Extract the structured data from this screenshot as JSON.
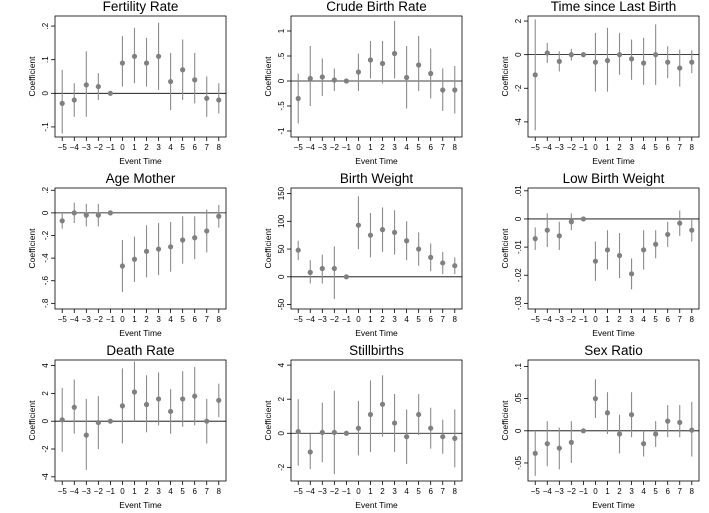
{
  "chart_data": [
    {
      "type": "scatter",
      "title": "Fertility Rate",
      "xlabel": "Event Time",
      "ylabel": "Coefficient",
      "x": [
        -5,
        -4,
        -3,
        -2,
        -1,
        0,
        1,
        2,
        3,
        4,
        5,
        6,
        7,
        8
      ],
      "y": [
        -0.03,
        -0.02,
        0.025,
        0.02,
        0.0,
        0.09,
        0.11,
        0.09,
        0.11,
        0.035,
        0.07,
        0.04,
        -0.015,
        -0.02
      ],
      "ci_low": [
        -0.12,
        -0.07,
        -0.07,
        -0.02,
        0.0,
        0.02,
        0.03,
        0.02,
        0.01,
        -0.05,
        -0.02,
        -0.03,
        -0.07,
        -0.06
      ],
      "ci_high": [
        0.07,
        0.03,
        0.125,
        0.06,
        0.0,
        0.17,
        0.195,
        0.165,
        0.21,
        0.12,
        0.16,
        0.12,
        0.05,
        0.03
      ],
      "ylim": [
        -0.13,
        0.23
      ],
      "yticks": [
        -0.1,
        0,
        0.1,
        0.2
      ],
      "ytick_labels": [
        "-.1",
        "0",
        ".1",
        ".2"
      ],
      "xtick_labels": [
        "−5",
        "−4",
        "−3",
        "−2",
        "−1",
        "0",
        "1",
        "2",
        "3",
        "4",
        "5",
        "6",
        "7",
        "8"
      ]
    },
    {
      "type": "scatter",
      "title": "Crude Birth Rate",
      "xlabel": "Event Time",
      "ylabel": "Coefficient",
      "x": [
        -5,
        -4,
        -3,
        -2,
        -1,
        0,
        1,
        2,
        3,
        4,
        5,
        6,
        7,
        8
      ],
      "y": [
        -0.35,
        0.05,
        0.08,
        0.02,
        0.0,
        0.18,
        0.42,
        0.35,
        0.55,
        0.07,
        0.32,
        0.15,
        -0.18,
        -0.18
      ],
      "ci_low": [
        -0.85,
        -0.5,
        -0.3,
        -0.2,
        0.0,
        -0.2,
        0.05,
        -0.05,
        0.05,
        -0.55,
        -0.2,
        -0.35,
        -0.6,
        -0.65
      ],
      "ci_high": [
        0.15,
        0.7,
        0.45,
        0.25,
        0.0,
        0.55,
        0.8,
        0.8,
        1.2,
        0.7,
        0.9,
        0.65,
        0.25,
        0.3
      ],
      "ylim": [
        -1.12,
        1.3
      ],
      "yticks": [
        -1,
        -0.5,
        0,
        0.5,
        1
      ],
      "ytick_labels": [
        "-1",
        "-.5",
        "0",
        ".5",
        "1"
      ],
      "xtick_labels": [
        "−5",
        "−4",
        "−3",
        "−2",
        "−1",
        "0",
        "1",
        "2",
        "3",
        "4",
        "5",
        "6",
        "7",
        "8"
      ]
    },
    {
      "type": "scatter",
      "title": "Time since Last Birth",
      "xlabel": "Event Time",
      "ylabel": "Coefficient",
      "x": [
        -5,
        -4,
        -3,
        -2,
        -1,
        0,
        1,
        2,
        3,
        4,
        5,
        6,
        7,
        8
      ],
      "y": [
        -1.2,
        0.1,
        -0.4,
        0.0,
        0.0,
        -0.45,
        -0.35,
        0.0,
        -0.25,
        -0.5,
        0.0,
        -0.45,
        -0.8,
        -0.45
      ],
      "ci_low": [
        -4.5,
        -0.5,
        -1.0,
        -0.35,
        0.0,
        -2.2,
        -2.2,
        -1.2,
        -1.5,
        -1.8,
        -1.8,
        -1.4,
        -1.9,
        -1.1
      ],
      "ci_high": [
        2.1,
        0.7,
        0.2,
        0.35,
        0.0,
        1.3,
        1.6,
        1.3,
        0.9,
        1.0,
        1.8,
        0.5,
        0.3,
        0.25
      ],
      "ylim": [
        -4.9,
        2.3
      ],
      "yticks": [
        -4,
        -2,
        0,
        2
      ],
      "ytick_labels": [
        "-4",
        "-2",
        "0",
        "2"
      ],
      "xtick_labels": [
        "−5",
        "−4",
        "−3",
        "−2",
        "−1",
        "0",
        "1",
        "2",
        "3",
        "4",
        "5",
        "6",
        "7",
        "8"
      ]
    },
    {
      "type": "scatter",
      "title": "Age Mother",
      "xlabel": "Event Time",
      "ylabel": "Coefficient",
      "x": [
        -5,
        -4,
        -3,
        -2,
        -1,
        0,
        1,
        2,
        3,
        4,
        5,
        6,
        7,
        8
      ],
      "y": [
        -0.07,
        0.0,
        -0.02,
        -0.02,
        0.0,
        -0.47,
        -0.41,
        -0.34,
        -0.32,
        -0.3,
        -0.24,
        -0.22,
        -0.16,
        -0.03
      ],
      "ci_low": [
        -0.14,
        -0.09,
        -0.12,
        -0.12,
        0.0,
        -0.7,
        -0.61,
        -0.57,
        -0.55,
        -0.52,
        -0.45,
        -0.41,
        -0.35,
        -0.13
      ],
      "ci_high": [
        0.0,
        0.09,
        0.08,
        0.08,
        0.0,
        -0.24,
        -0.21,
        -0.11,
        -0.09,
        -0.08,
        -0.03,
        -0.03,
        0.03,
        0.07
      ],
      "ylim": [
        -0.85,
        0.22
      ],
      "yticks": [
        -0.8,
        -0.6,
        -0.4,
        -0.2,
        0,
        0.2
      ],
      "ytick_labels": [
        "-.8",
        "-.6",
        "-.4",
        "-.2",
        "0",
        ".2"
      ],
      "xtick_labels": [
        "−5",
        "−4",
        "−3",
        "−2",
        "−1",
        "0",
        "1",
        "2",
        "3",
        "4",
        "5",
        "6",
        "7",
        "8"
      ]
    },
    {
      "type": "scatter",
      "title": "Birth Weight",
      "xlabel": "Event Time",
      "ylabel": "Coefficient",
      "x": [
        -5,
        -4,
        -3,
        -2,
        -1,
        0,
        1,
        2,
        3,
        4,
        5,
        6,
        7,
        8
      ],
      "y": [
        48,
        8,
        15,
        15,
        0,
        93,
        75,
        85,
        80,
        65,
        50,
        35,
        25,
        20
      ],
      "ci_low": [
        30,
        -12,
        -12,
        -40,
        0,
        50,
        35,
        45,
        40,
        30,
        20,
        10,
        5,
        5
      ],
      "ci_high": [
        65,
        30,
        40,
        55,
        0,
        145,
        115,
        125,
        120,
        100,
        80,
        60,
        45,
        35
      ],
      "ylim": [
        -58,
        160
      ],
      "yticks": [
        -50,
        0,
        50,
        100,
        150
      ],
      "ytick_labels": [
        "-50",
        "0",
        "50",
        "100",
        "150"
      ],
      "xtick_labels": [
        "−5",
        "−4",
        "−3",
        "−2",
        "−1",
        "0",
        "1",
        "2",
        "3",
        "4",
        "5",
        "6",
        "7",
        "8"
      ]
    },
    {
      "type": "scatter",
      "title": "Low Birth Weight",
      "xlabel": "Event Time",
      "ylabel": "Coefficient",
      "x": [
        -5,
        -4,
        -3,
        -2,
        -1,
        0,
        1,
        2,
        3,
        4,
        5,
        6,
        7,
        8
      ],
      "y": [
        -0.007,
        -0.004,
        -0.006,
        -0.001,
        0.0,
        -0.015,
        -0.011,
        -0.013,
        -0.0195,
        -0.011,
        -0.009,
        -0.0055,
        -0.0015,
        -0.004
      ],
      "ci_low": [
        -0.011,
        -0.01,
        -0.011,
        -0.004,
        0.0,
        -0.022,
        -0.018,
        -0.021,
        -0.025,
        -0.018,
        -0.014,
        -0.01,
        -0.006,
        -0.008
      ],
      "ci_high": [
        -0.003,
        0.002,
        -0.001,
        0.002,
        0.0,
        -0.008,
        -0.004,
        -0.005,
        -0.014,
        -0.004,
        -0.004,
        -0.001,
        0.003,
        0.0
      ],
      "ylim": [
        -0.032,
        0.011
      ],
      "yticks": [
        -0.03,
        -0.02,
        -0.01,
        0,
        0.01
      ],
      "ytick_labels": [
        "-.03",
        "-.02",
        "-.01",
        "0",
        ".01"
      ],
      "xtick_labels": [
        "−5",
        "−4",
        "−3",
        "−2",
        "−1",
        "0",
        "1",
        "2",
        "3",
        "4",
        "5",
        "6",
        "7",
        "8"
      ]
    },
    {
      "type": "scatter",
      "title": "Death Rate",
      "xlabel": "Event Time",
      "ylabel": "Coefficient",
      "x": [
        -5,
        -4,
        -3,
        -2,
        -1,
        0,
        1,
        2,
        3,
        4,
        5,
        6,
        7,
        8
      ],
      "y": [
        0.1,
        1.0,
        -1.0,
        -0.1,
        0.0,
        1.1,
        2.1,
        1.2,
        1.6,
        0.7,
        1.6,
        1.8,
        0.0,
        1.5
      ],
      "ci_low": [
        -2.2,
        -0.9,
        -3.5,
        -2.0,
        0.0,
        -1.6,
        0.0,
        -0.8,
        -0.3,
        -0.9,
        -0.4,
        -0.3,
        -1.6,
        0.3
      ],
      "ci_high": [
        2.4,
        3.0,
        1.6,
        1.8,
        0.0,
        3.8,
        4.3,
        3.3,
        3.5,
        2.3,
        3.6,
        3.9,
        1.6,
        2.7
      ],
      "ylim": [
        -4.3,
        4.4
      ],
      "yticks": [
        -4,
        -2,
        0,
        2,
        4
      ],
      "ytick_labels": [
        "-4",
        "-2",
        "0",
        "2",
        "4"
      ],
      "xtick_labels": [
        "−5",
        "−4",
        "−3",
        "−2",
        "−1",
        "0",
        "1",
        "2",
        "3",
        "4",
        "5",
        "6",
        "7",
        "8"
      ]
    },
    {
      "type": "scatter",
      "title": "Stillbirths",
      "xlabel": "Event Time",
      "ylabel": "Coefficient",
      "x": [
        -5,
        -4,
        -3,
        -2,
        -1,
        0,
        1,
        2,
        3,
        4,
        5,
        6,
        7,
        8
      ],
      "y": [
        0.1,
        -1.1,
        0.05,
        0.05,
        0.0,
        0.3,
        1.1,
        1.7,
        0.6,
        -0.2,
        1.1,
        0.3,
        -0.2,
        -0.3
      ],
      "ci_low": [
        -1.9,
        -2.1,
        -1.7,
        -2.4,
        0.0,
        -1.3,
        -1.1,
        -0.2,
        -1.1,
        -1.8,
        -0.1,
        -0.9,
        -1.2,
        -2.0
      ],
      "ci_high": [
        2.0,
        0.0,
        1.8,
        2.5,
        0.0,
        1.9,
        3.1,
        3.4,
        2.3,
        1.4,
        2.3,
        1.5,
        0.8,
        1.4
      ],
      "ylim": [
        -2.8,
        4.3
      ],
      "yticks": [
        -2,
        0,
        2,
        4
      ],
      "ytick_labels": [
        "-2",
        "0",
        "2",
        "4"
      ],
      "xtick_labels": [
        "−5",
        "−4",
        "−3",
        "−2",
        "−1",
        "0",
        "1",
        "2",
        "3",
        "4",
        "5",
        "6",
        "7",
        "8"
      ]
    },
    {
      "type": "scatter",
      "title": "Sex Ratio",
      "xlabel": "Event Time",
      "ylabel": "Coefficient",
      "x": [
        -5,
        -4,
        -3,
        -2,
        -1,
        0,
        1,
        2,
        3,
        4,
        5,
        6,
        7,
        8
      ],
      "y": [
        -0.035,
        -0.02,
        -0.027,
        -0.018,
        0.0,
        0.05,
        0.028,
        -0.005,
        0.025,
        -0.02,
        -0.005,
        0.015,
        0.013,
        0.001
      ],
      "ci_low": [
        -0.07,
        -0.055,
        -0.06,
        -0.05,
        0.0,
        0.02,
        -0.005,
        -0.035,
        -0.01,
        -0.04,
        -0.025,
        -0.01,
        -0.01,
        -0.04
      ],
      "ci_high": [
        0.0,
        0.015,
        0.005,
        0.015,
        0.0,
        0.08,
        0.06,
        0.025,
        0.06,
        0.0,
        0.015,
        0.04,
        0.04,
        0.045
      ],
      "ylim": [
        -0.078,
        0.11
      ],
      "yticks": [
        -0.05,
        0,
        0.05,
        0.1
      ],
      "ytick_labels": [
        "-.05",
        "0",
        ".05",
        ".1"
      ],
      "xtick_labels": [
        "−5",
        "−4",
        "−3",
        "−2",
        "−1",
        "0",
        "1",
        "2",
        "3",
        "4",
        "5",
        "6",
        "7",
        "8"
      ]
    }
  ],
  "colors": {
    "marker": "#808080",
    "ci": "#8c8c8c",
    "axis": "#000000",
    "zero_line": "#000000"
  }
}
